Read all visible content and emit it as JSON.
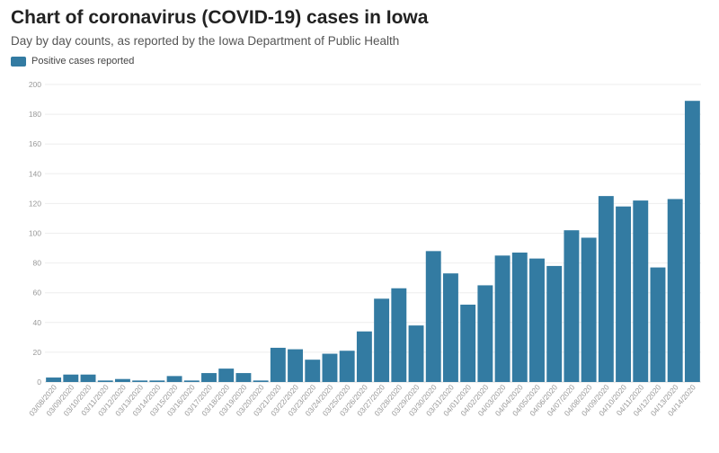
{
  "title": "Chart of coronavirus (COVID-19) cases in Iowa",
  "subtitle": "Day by day counts, as reported by the Iowa Department of Public Health",
  "legend": {
    "label": "Positive cases reported",
    "color": "#337ba2"
  },
  "chart_data": {
    "type": "bar",
    "title": "Chart of coronavirus (COVID-19) cases in Iowa",
    "subtitle": "Day by day counts, as reported by the Iowa Department of Public Health",
    "xlabel": "",
    "ylabel": "",
    "ylim": [
      0,
      200
    ],
    "yticks": [
      0,
      20,
      40,
      60,
      80,
      100,
      120,
      140,
      160,
      180,
      200
    ],
    "grid": true,
    "legend_position": "top-left",
    "categories": [
      "03/08/2020",
      "03/09/2020",
      "03/10/2020",
      "03/11/2020",
      "03/12/2020",
      "03/13/2020",
      "03/14/2020",
      "03/15/2020",
      "03/16/2020",
      "03/17/2020",
      "03/18/2020",
      "03/19/2020",
      "03/20/2020",
      "03/21/2020",
      "03/22/2020",
      "03/23/2020",
      "03/24/2020",
      "03/25/2020",
      "03/26/2020",
      "03/27/2020",
      "03/28/2020",
      "03/29/2020",
      "03/30/2020",
      "03/31/2020",
      "04/01/2020",
      "04/02/2020",
      "04/03/2020",
      "04/04/2020",
      "04/05/2020",
      "04/06/2020",
      "04/07/2020",
      "04/08/2020",
      "04/09/2020",
      "04/10/2020",
      "04/11/2020",
      "04/12/2020",
      "04/13/2020",
      "04/14/2020"
    ],
    "series": [
      {
        "name": "Positive cases reported",
        "color": "#337ba2",
        "values": [
          3,
          5,
          5,
          1,
          2,
          1,
          1,
          4,
          1,
          6,
          9,
          6,
          1,
          23,
          22,
          15,
          19,
          21,
          34,
          56,
          63,
          38,
          88,
          73,
          52,
          65,
          85,
          87,
          83,
          78,
          102,
          97,
          125,
          118,
          122,
          77,
          123,
          189
        ]
      }
    ]
  }
}
